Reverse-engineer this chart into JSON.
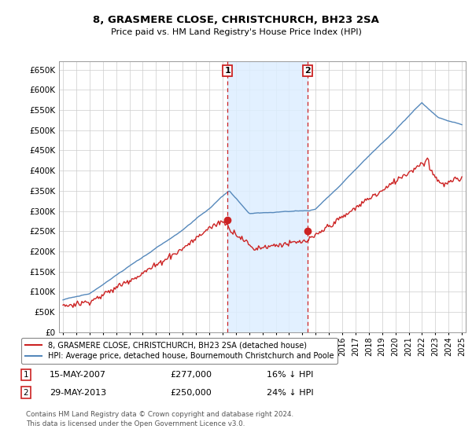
{
  "title": "8, GRASMERE CLOSE, CHRISTCHURCH, BH23 2SA",
  "subtitle": "Price paid vs. HM Land Registry's House Price Index (HPI)",
  "ylim": [
    0,
    670000
  ],
  "yticks": [
    0,
    50000,
    100000,
    150000,
    200000,
    250000,
    300000,
    350000,
    400000,
    450000,
    500000,
    550000,
    600000,
    650000
  ],
  "background_color": "#ffffff",
  "grid_color": "#cccccc",
  "shade_color": "#ddeeff",
  "sale1_x": 2007.37,
  "sale1_price": 277000,
  "sale2_x": 2013.41,
  "sale2_price": 250000,
  "legend_red": "8, GRASMERE CLOSE, CHRISTCHURCH, BH23 2SA (detached house)",
  "legend_blue": "HPI: Average price, detached house, Bournemouth Christchurch and Poole",
  "footer": "Contains HM Land Registry data © Crown copyright and database right 2024.\nThis data is licensed under the Open Government Licence v3.0.",
  "red_color": "#cc2222",
  "blue_color": "#5588bb",
  "title_fontsize": 9.5,
  "subtitle_fontsize": 8
}
